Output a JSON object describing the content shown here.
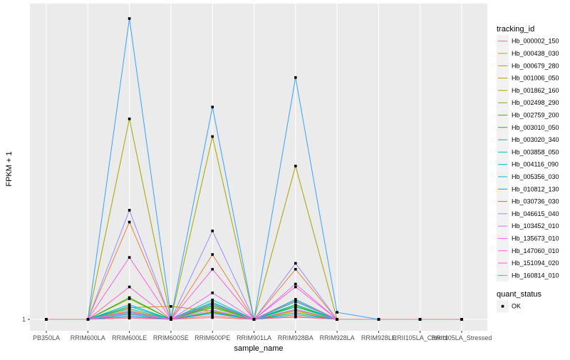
{
  "chart_data": {
    "type": "line",
    "xlabel": "sample_name",
    "ylabel": "FPKM + 1",
    "y_tick_labels": [
      "1"
    ],
    "categories": [
      "PB350LA",
      "RRIM600LA",
      "RRIM600LE",
      "RRIM600SE",
      "RRIM600PE",
      "RRIM901LA",
      "RRIM928BA",
      "RRIM928LA",
      "RRIM928LE",
      "RRII105LA_Control",
      "RRII105LA_Stressed"
    ],
    "ylim": [
      0.5,
      40
    ],
    "legend": {
      "title": "tracking_id",
      "position": "right",
      "shape_title": "quant_status",
      "shape_entries": [
        "OK"
      ]
    },
    "series": [
      {
        "name": "Hb_000002_150",
        "color": "#F8766D",
        "values": [
          1,
          1,
          1.4,
          1,
          1.3,
          1,
          1.5,
          1,
          1,
          1,
          1
        ]
      },
      {
        "name": "Hb_000438_030",
        "color": "#EE8043",
        "values": [
          1,
          1,
          17.5,
          1,
          12,
          1,
          9.5,
          1,
          1,
          1,
          1
        ]
      },
      {
        "name": "Hb_000679_280",
        "color": "#DD8D00",
        "values": [
          1,
          1,
          2.5,
          1,
          2.3,
          1,
          2.4,
          1,
          1,
          1,
          1
        ]
      },
      {
        "name": "Hb_001006_050",
        "color": "#C49A00",
        "values": [
          1,
          1,
          3,
          3.2,
          2.4,
          1,
          2.6,
          1,
          1,
          1,
          1
        ]
      },
      {
        "name": "Hb_001862_160",
        "color": "#A3A500",
        "values": [
          1,
          1,
          35,
          1,
          32,
          1,
          27,
          1,
          1,
          1,
          1
        ]
      },
      {
        "name": "Hb_002498_290",
        "color": "#7CAE00",
        "values": [
          1,
          1,
          4.5,
          1,
          3.2,
          1,
          3.5,
          1,
          1,
          1,
          1
        ]
      },
      {
        "name": "Hb_002759_200",
        "color": "#39B600",
        "values": [
          1,
          1,
          4.7,
          1,
          3,
          1,
          3.3,
          1,
          1,
          1,
          1
        ]
      },
      {
        "name": "Hb_003010_050",
        "color": "#00BB4E",
        "values": [
          1,
          1,
          1.9,
          1,
          2.2,
          1,
          2.1,
          1,
          1,
          1,
          1
        ]
      },
      {
        "name": "Hb_003020_340",
        "color": "#00BF7D",
        "values": [
          1,
          1,
          3.2,
          1,
          3.4,
          1,
          3.1,
          1,
          1,
          1,
          1
        ]
      },
      {
        "name": "Hb_003858_050",
        "color": "#00C1A3",
        "values": [
          1,
          1,
          2.8,
          1,
          3.9,
          1,
          4,
          1,
          1,
          1,
          1
        ]
      },
      {
        "name": "Hb_004116_090",
        "color": "#00BFC4",
        "values": [
          1,
          1,
          2.2,
          1,
          4.3,
          1,
          4.4,
          1,
          1,
          1,
          1
        ]
      },
      {
        "name": "Hb_005356_030",
        "color": "#00B8E5",
        "values": [
          1,
          1,
          3.5,
          1,
          3.7,
          1,
          3.5,
          1,
          1,
          1,
          1
        ]
      },
      {
        "name": "Hb_010812_130",
        "color": "#00A9FF",
        "values": [
          1,
          1,
          1.6,
          1,
          2,
          1,
          1.8,
          1,
          1,
          1,
          1
        ]
      },
      {
        "name": "Hb_030736_030",
        "color": "#35A2FF",
        "values": [
          1,
          1,
          52,
          1.3,
          37,
          1,
          42,
          2.2,
          1,
          1,
          1
        ]
      },
      {
        "name": "Hb_046615_040",
        "color": "#9590FF",
        "values": [
          1,
          1,
          19.5,
          1,
          16,
          1,
          10.5,
          1,
          1,
          1,
          1
        ]
      },
      {
        "name": "Hb_103452_010",
        "color": "#C77CFF",
        "values": [
          1,
          1,
          2,
          1,
          2.6,
          1,
          2.7,
          1,
          1,
          1,
          1
        ]
      },
      {
        "name": "Hb_135673_010",
        "color": "#E76BF3",
        "values": [
          1,
          1,
          2.3,
          1,
          5.5,
          1,
          7,
          1,
          1,
          1,
          1
        ]
      },
      {
        "name": "Hb_147060_010",
        "color": "#FA62DB",
        "values": [
          1,
          1,
          11.5,
          1,
          9.5,
          1,
          6.5,
          1,
          1,
          1,
          1
        ]
      },
      {
        "name": "Hb_151094_020",
        "color": "#FF62BC",
        "values": [
          1,
          1,
          6.5,
          1,
          3.6,
          1,
          4.2,
          1,
          1,
          1,
          1
        ]
      },
      {
        "name": "Hb_160814_010",
        "color": "#FF6C91",
        "values": [
          1,
          1,
          1.2,
          1,
          1.6,
          1,
          1.4,
          1,
          1,
          1,
          1
        ]
      }
    ]
  }
}
